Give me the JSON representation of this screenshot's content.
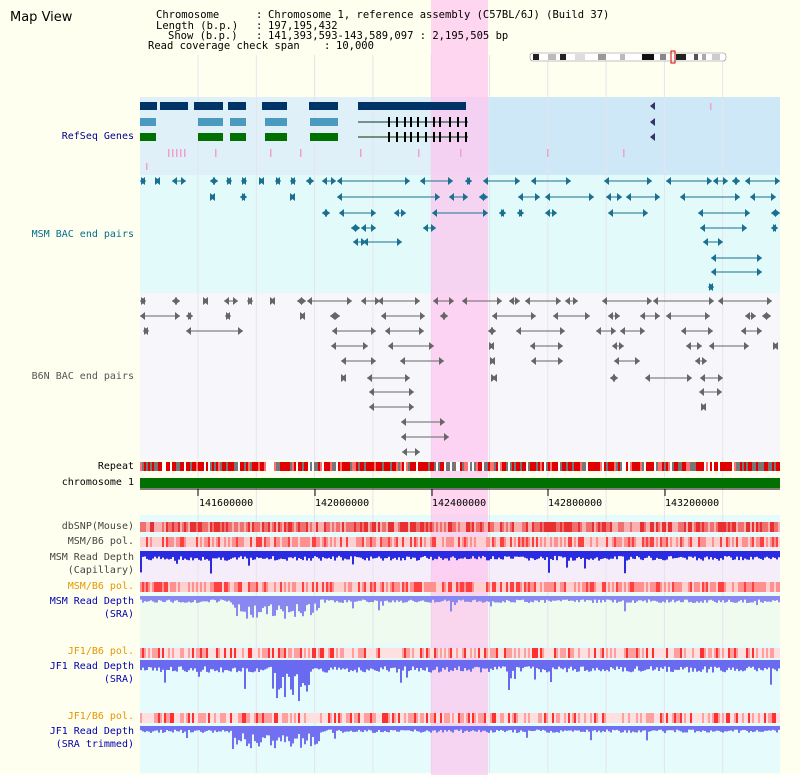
{
  "title": "Map View",
  "header": {
    "chrom_label": "Chromosome",
    "chrom_value": "Chromosome 1, reference assembly (C57BL/6J) (Build 37)",
    "length_label": "Length (b.p.)",
    "length_value": "197,195,432",
    "show_label": "Show (b.p.)",
    "show_value": "141,393,593-143,589,097 : 2,195,505 bp",
    "span_label": "Read coverage check span",
    "span_value": "10,000"
  },
  "tracks": {
    "refseq": "RefSeq Genes",
    "msm_bac": "MSM BAC end pairs",
    "b6n_bac": "B6N BAC end pairs",
    "repeat": "Repeat",
    "chromosome": "chromosome 1",
    "dbsnp": "dbSNP(Mouse)",
    "msm_b6_pol_1": "MSM/B6 pol.",
    "msm_depth_cap_1": "MSM Read Depth",
    "msm_depth_cap_2": "(Capillary)",
    "msm_b6_pol_2": "MSM/B6 pol.",
    "msm_depth_sra_1": "MSM Read Depth",
    "msm_depth_sra_2": "(SRA)",
    "jf1_b6_pol_1": "JF1/B6 pol.",
    "jf1_depth_sra_1": "JF1 Read Depth",
    "jf1_depth_sra_2": "(SRA)",
    "jf1_b6_pol_2": "JF1/B6 pol.",
    "jf1_depth_trim_1": "JF1 Read Depth",
    "jf1_depth_trim_2": "(SRA trimmed)"
  },
  "axis": {
    "ticks": [
      "141600000",
      "142000000",
      "142400000",
      "142800000",
      "143200000"
    ]
  },
  "colors": {
    "refseq_label": "#00008b",
    "msm_label": "#006f8f",
    "b6n_label": "#555555",
    "pol_orange": "#e69500",
    "depth_blue": "#0000b0",
    "highlight": "#ffc0ee"
  }
}
